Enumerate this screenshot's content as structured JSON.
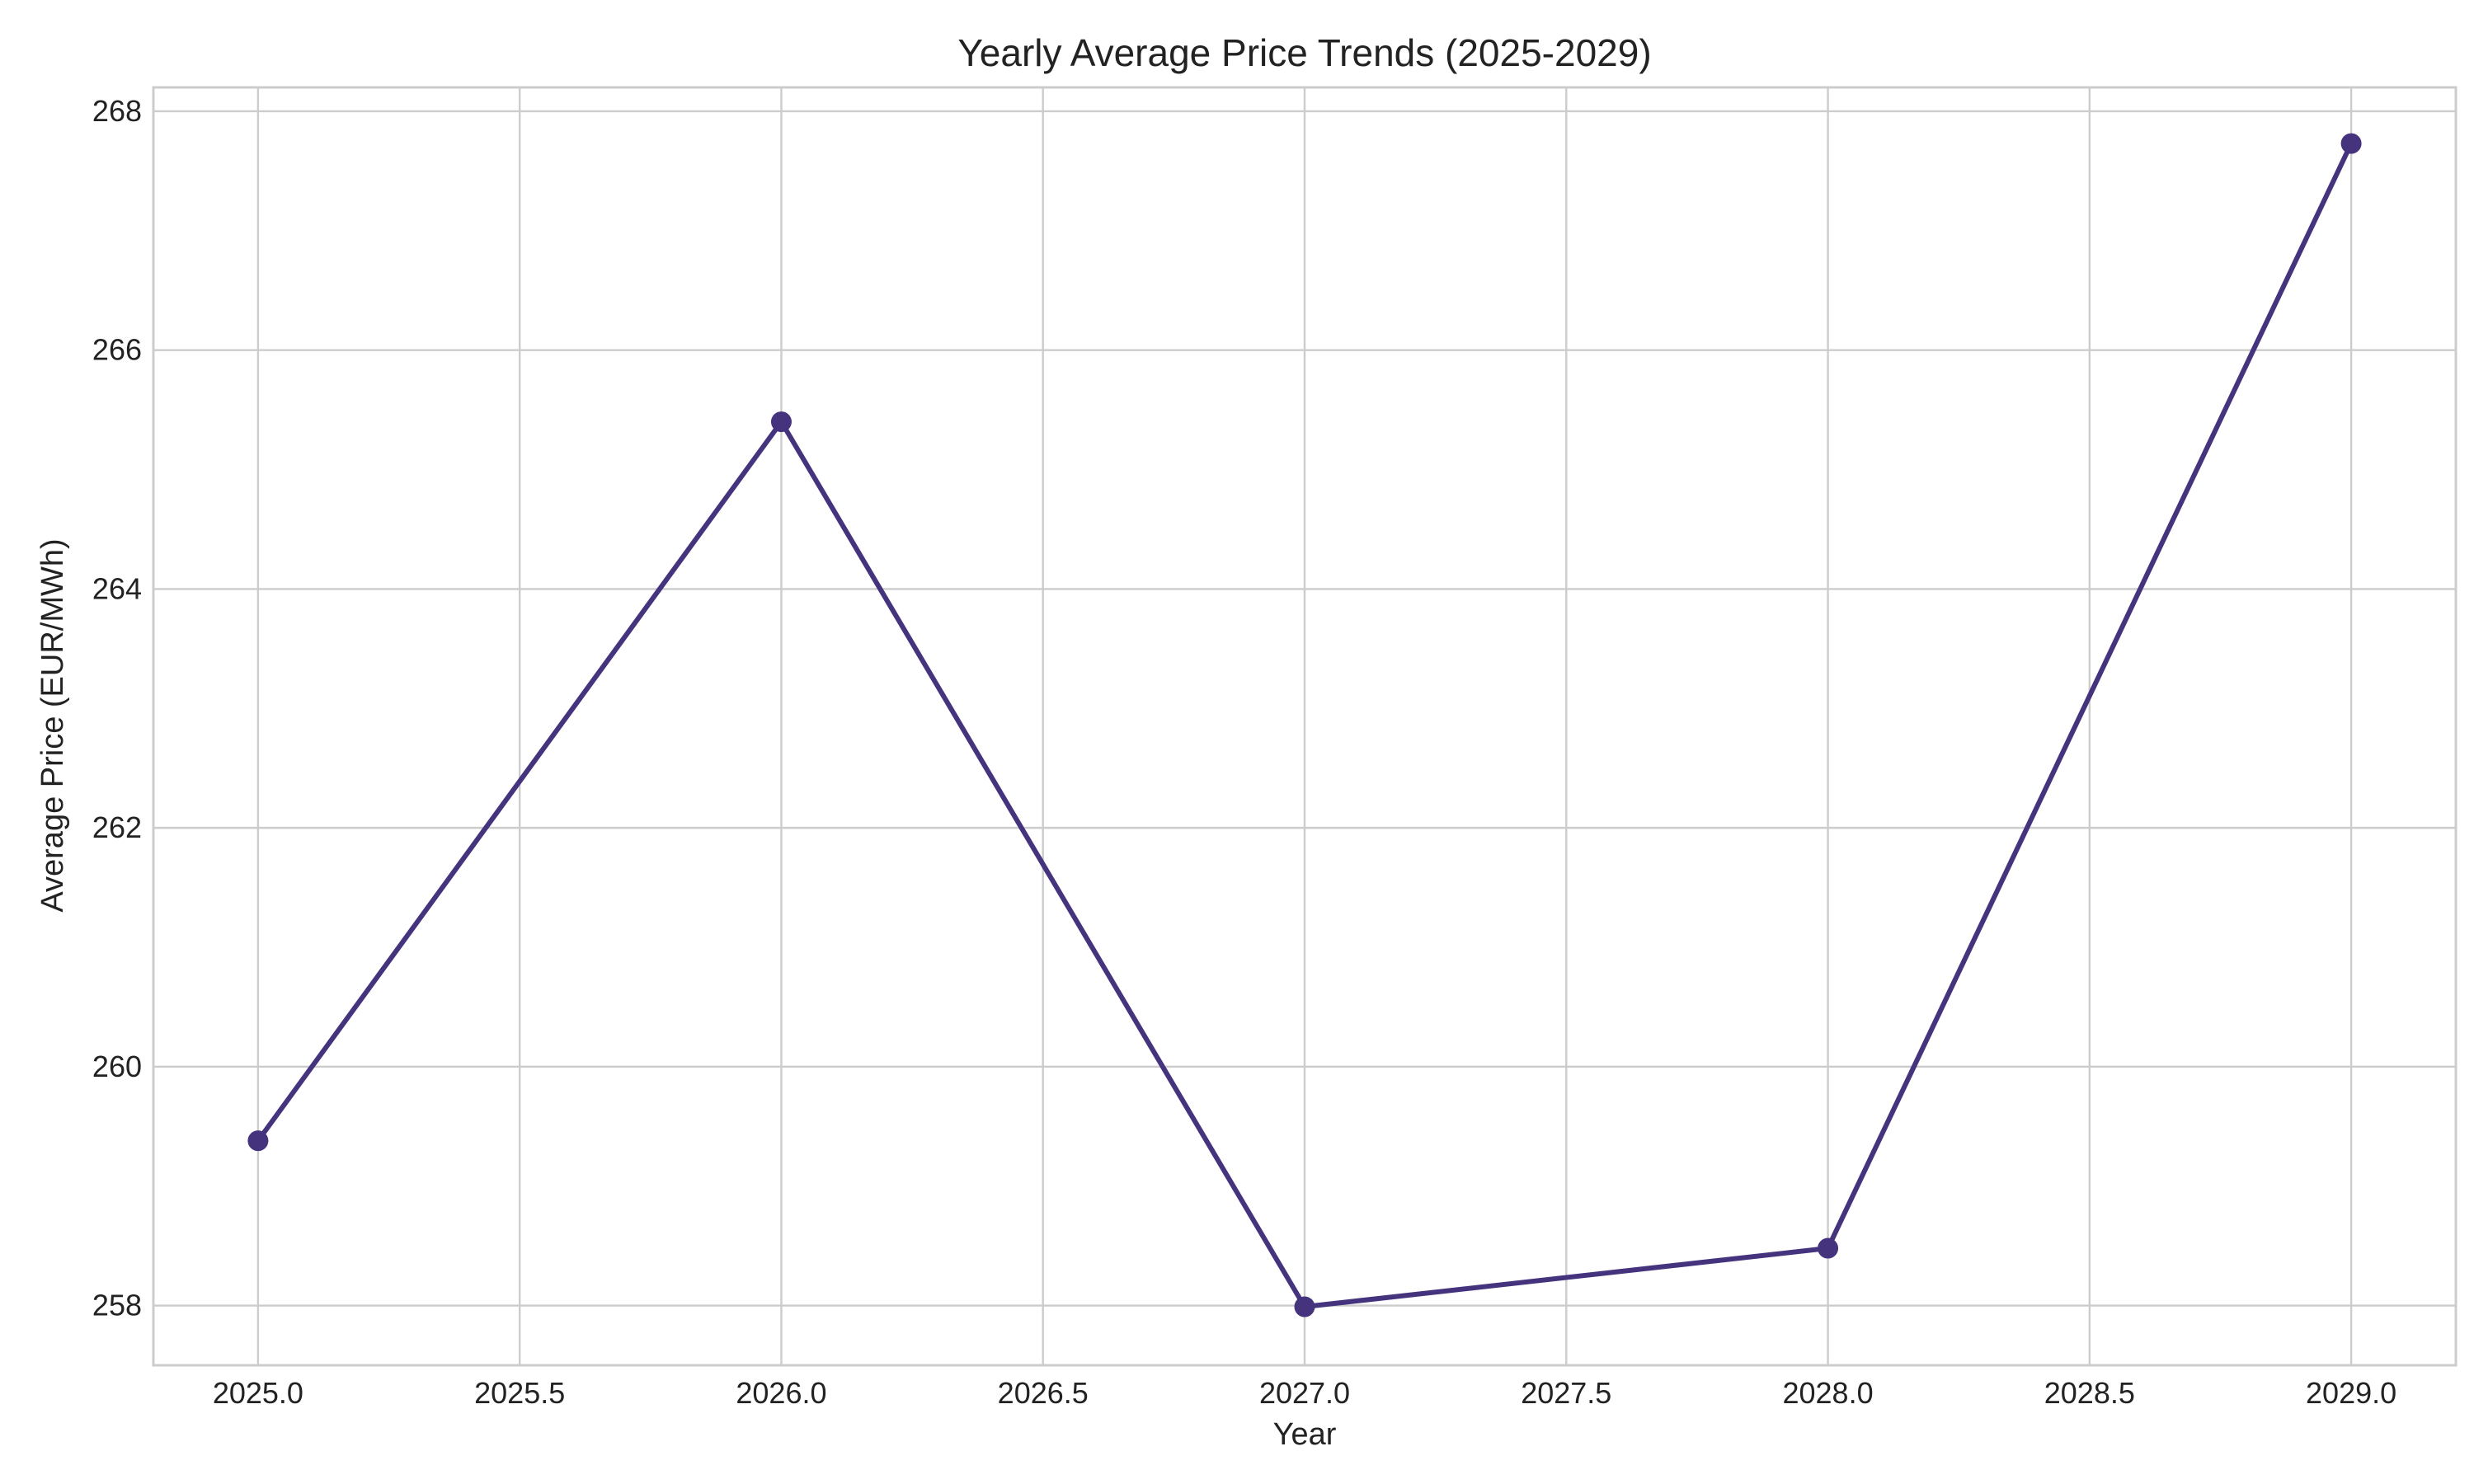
{
  "chart_data": {
    "type": "line",
    "title": "Yearly Average Price Trends (2025-2029)",
    "xlabel": "Year",
    "ylabel": "Average Price (EUR/MWh)",
    "x": [
      2025,
      2026,
      2027,
      2028,
      2029
    ],
    "series": [
      {
        "values": [
          259.38,
          265.4,
          257.99,
          258.48,
          267.73
        ]
      }
    ],
    "xlim": [
      2024.8,
      2029.2
    ],
    "ylim": [
      257.5,
      268.2
    ],
    "xticks": [
      2025.0,
      2025.5,
      2026.0,
      2026.5,
      2027.0,
      2027.5,
      2028.0,
      2028.5,
      2029.0
    ],
    "xtick_labels": [
      "2025.0",
      "2025.5",
      "2026.0",
      "2026.5",
      "2027.0",
      "2027.5",
      "2028.0",
      "2028.5",
      "2029.0"
    ],
    "yticks": [
      258,
      260,
      262,
      264,
      266,
      268
    ],
    "ytick_labels": [
      "258",
      "260",
      "262",
      "264",
      "266",
      "268"
    ],
    "grid": true,
    "legend": "none",
    "colors": {
      "line": "#46337e",
      "grid": "#cccccc",
      "frame": "#cccccc",
      "text": "#222222",
      "background": "#ffffff"
    }
  }
}
